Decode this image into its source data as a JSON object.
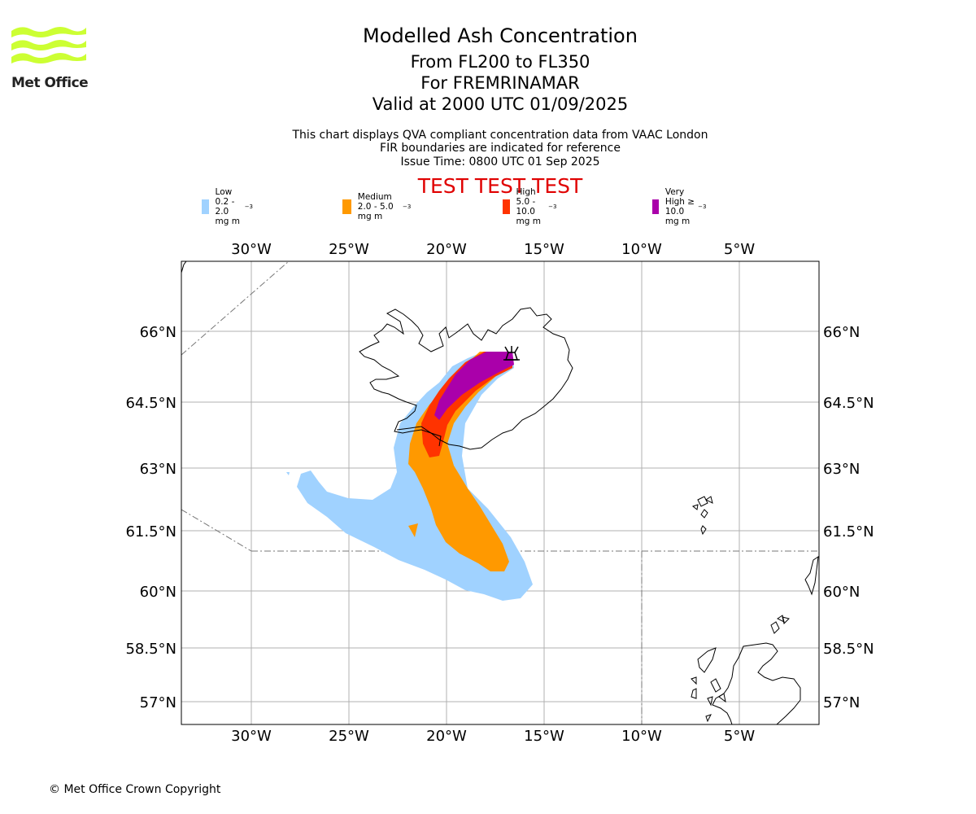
{
  "logo": {
    "text": "Met Office",
    "color": "#ccff33"
  },
  "header": {
    "title": "Modelled Ash Concentration",
    "level_range": "From FL200 to FL350",
    "volcano": "For FREMRINAMAR",
    "valid": "Valid at 2000 UTC 01/09/2025",
    "note_1": "This chart displays QVA compliant concentration data from VAAC London",
    "note_2": "FIR boundaries are indicated for reference",
    "note_3": "Issue Time: 0800 UTC 01 Sep 2025",
    "test_banner": "TEST TEST TEST"
  },
  "legend": [
    {
      "label": "Low 0.2 - 2.0 mg m",
      "unit_exp": "−3",
      "color": "#a0d2ff"
    },
    {
      "label": "Medium 2.0 - 5.0 mg m",
      "unit_exp": "−3",
      "color": "#ff9900"
    },
    {
      "label": "High 5.0 - 10.0 mg m",
      "unit_exp": "−3",
      "color": "#ff3300"
    },
    {
      "label": "Very High  ≥  10.0 mg m",
      "unit_exp": "−3",
      "color": "#aa00aa"
    }
  ],
  "map": {
    "lon_ticks": [
      "30°W",
      "25°W",
      "20°W",
      "15°W",
      "10°W",
      "5°W"
    ],
    "lat_ticks": [
      "66°N",
      "64.5°N",
      "63°N",
      "61.5°N",
      "60°N",
      "58.5°N",
      "57°N"
    ],
    "lon_values": [
      -30,
      -25,
      -20,
      -15,
      -10,
      -5
    ],
    "lat_values": [
      66,
      64.5,
      63,
      61.5,
      60,
      58.5,
      57
    ],
    "grid": true,
    "volcano_marker": "volcano-icon"
  },
  "footer": {
    "copyright": "© Met Office Crown Copyright"
  }
}
